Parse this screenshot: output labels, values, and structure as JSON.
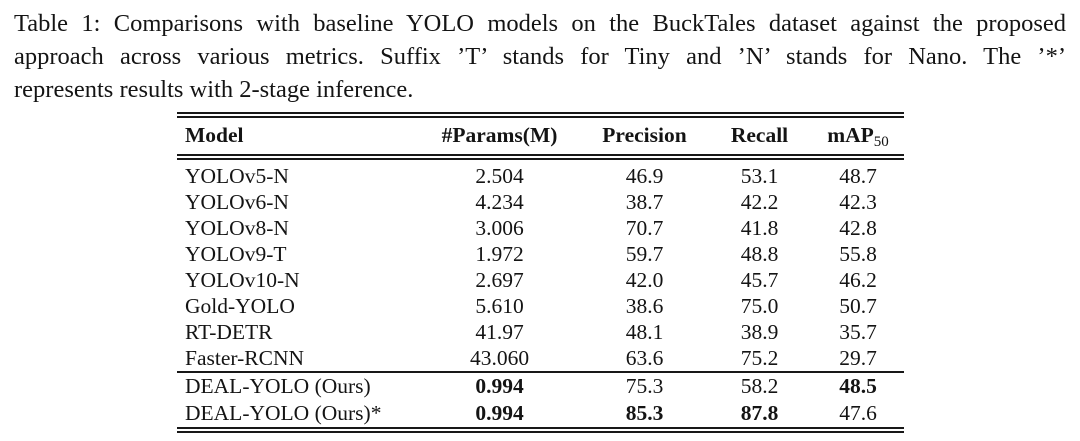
{
  "caption": {
    "label": "Table 1:",
    "lines": [
      "Table 1: Comparisons with baseline YOLO models on the BuckTales dataset against the proposed",
      "approach across various metrics.  Suffix ’T’ stands for Tiny and ’N’ stands for Nano.  The ’*’",
      "represents results with 2-stage inference."
    ]
  },
  "table": {
    "headers": {
      "model": "Model",
      "params": "#Params(M)",
      "precision": "Precision",
      "recall": "Recall",
      "map_main": "mAP",
      "map_sub": "50"
    },
    "rows": [
      {
        "model": "YOLOv5-N",
        "params": "2.504",
        "precision": "46.9",
        "recall": "53.1",
        "map": "48.7"
      },
      {
        "model": "YOLOv6-N",
        "params": "4.234",
        "precision": "38.7",
        "recall": "42.2",
        "map": "42.3"
      },
      {
        "model": "YOLOv8-N",
        "params": "3.006",
        "precision": "70.7",
        "recall": "41.8",
        "map": "42.8"
      },
      {
        "model": "YOLOv9-T",
        "params": "1.972",
        "precision": "59.7",
        "recall": "48.8",
        "map": "55.8"
      },
      {
        "model": "YOLOv10-N",
        "params": "2.697",
        "precision": "42.0",
        "recall": "45.7",
        "map": "46.2"
      },
      {
        "model": "Gold-YOLO",
        "params": "5.610",
        "precision": "38.6",
        "recall": "75.0",
        "map": "50.7"
      },
      {
        "model": "RT-DETR",
        "params": "41.97",
        "precision": "48.1",
        "recall": "38.9",
        "map": "35.7"
      },
      {
        "model": "Faster-RCNN",
        "params": "43.060",
        "precision": "63.6",
        "recall": "75.2",
        "map": "29.7"
      },
      {
        "model": "DEAL-YOLO (Ours)",
        "params": "0.994",
        "precision": "75.3",
        "recall": "58.2",
        "map": "48.5"
      },
      {
        "model": "DEAL-YOLO (Ours)*",
        "params": "0.994",
        "precision": "85.3",
        "recall": "87.8",
        "map": "47.6"
      }
    ]
  },
  "colors": {
    "background": "#ffffff",
    "text": "#141414",
    "rule": "#181818"
  }
}
